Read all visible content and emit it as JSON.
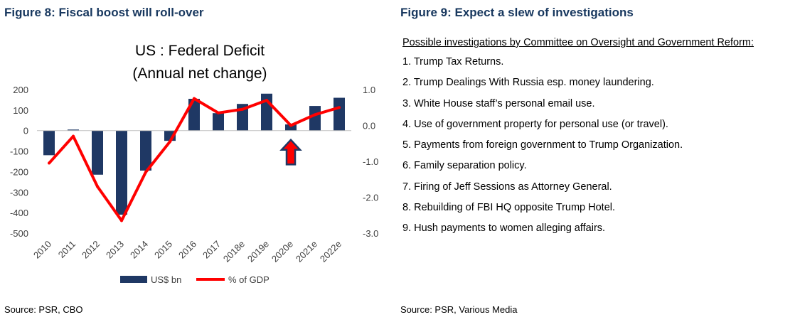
{
  "figure8": {
    "heading": "Figure 8: Fiscal boost will roll-over",
    "source": "Source: PSR, CBO"
  },
  "figure9": {
    "heading": "Figure 9: Expect a slew of investigations",
    "subheading": "Possible investigations by Committee on Oversight and Government Reform:",
    "items": [
      "1. Trump Tax Returns.",
      "2. Trump Dealings With Russia esp. money laundering.",
      "3. White House staff’s personal email use.",
      "4. Use of government property for personal use (or travel).",
      "5. Payments from foreign government to Trump Organization.",
      "6. Family separation policy.",
      "7. Firing of Jeff Sessions as Attorney General.",
      "8. Rebuilding of FBI HQ opposite Trump Hotel.",
      "9. Hush payments to women alleging affairs."
    ],
    "source": "Source: PSR, Various Media"
  },
  "chart_data": {
    "type": "bar",
    "title": "US : Federal Deficit",
    "subtitle": "(Annual net change)",
    "categories": [
      "2010",
      "2011",
      "2012",
      "2013",
      "2014",
      "2015",
      "2016",
      "2017",
      "2018e",
      "2019e",
      "2020e",
      "2021e",
      "2022e"
    ],
    "series": [
      {
        "name": "US$ bn",
        "chart": "bar",
        "axis": "left",
        "color": "#1f3864",
        "values": [
          -120,
          5,
          -215,
          -410,
          -195,
          -50,
          155,
          85,
          130,
          180,
          30,
          120,
          160
        ]
      },
      {
        "name": "% of GDP",
        "chart": "line",
        "axis": "right",
        "color": "#ff0000",
        "values": [
          -1.05,
          -0.3,
          -1.7,
          -2.65,
          -1.3,
          -0.45,
          0.75,
          0.35,
          0.45,
          0.7,
          0.0,
          0.3,
          0.5
        ]
      }
    ],
    "y_left": {
      "lim": [
        -500,
        200
      ],
      "ticks": [
        200,
        100,
        0,
        -100,
        -200,
        -300,
        -400,
        -500
      ]
    },
    "y_right": {
      "lim": [
        -3.0,
        1.0
      ],
      "ticks": [
        "1.0",
        "0.0",
        "-1.0",
        "-2.0",
        "-3.0"
      ]
    },
    "legend": "bottom",
    "annotation": "up-arrow at 2020e",
    "annotation_color": "#ff0000",
    "grid": false
  }
}
